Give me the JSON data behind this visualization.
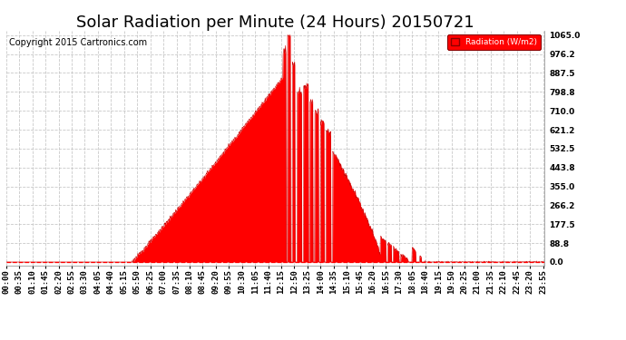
{
  "title": "Solar Radiation per Minute (24 Hours) 20150721",
  "copyright_text": "Copyright 2015 Cartronics.com",
  "legend_label": "Radiation (W/m2)",
  "fill_color": "#FF0000",
  "line_color": "#CC0000",
  "background_color": "#FFFFFF",
  "grid_color": "#BBBBBB",
  "dashed_line_color": "#FF0000",
  "y_ticks": [
    0.0,
    88.8,
    177.5,
    266.2,
    355.0,
    443.8,
    532.5,
    621.2,
    710.0,
    798.8,
    887.5,
    976.2,
    1065.0
  ],
  "y_max": 1065.0,
  "x_tick_labels": [
    "00:00",
    "00:35",
    "01:10",
    "01:45",
    "02:20",
    "02:55",
    "03:30",
    "04:05",
    "04:40",
    "05:15",
    "05:50",
    "06:25",
    "07:00",
    "07:35",
    "08:10",
    "08:45",
    "09:20",
    "09:55",
    "10:30",
    "11:05",
    "11:40",
    "12:15",
    "12:50",
    "13:25",
    "14:00",
    "14:35",
    "15:10",
    "15:45",
    "16:20",
    "16:55",
    "17:30",
    "18:05",
    "18:40",
    "19:15",
    "19:50",
    "20:25",
    "21:00",
    "21:35",
    "22:10",
    "22:45",
    "23:20",
    "23:55"
  ],
  "title_fontsize": 13,
  "label_fontsize": 6.5,
  "copyright_fontsize": 7,
  "sunrise_minute": 335,
  "sunset_minute": 1155,
  "peak_minute": 745,
  "peak_value": 1065.0
}
